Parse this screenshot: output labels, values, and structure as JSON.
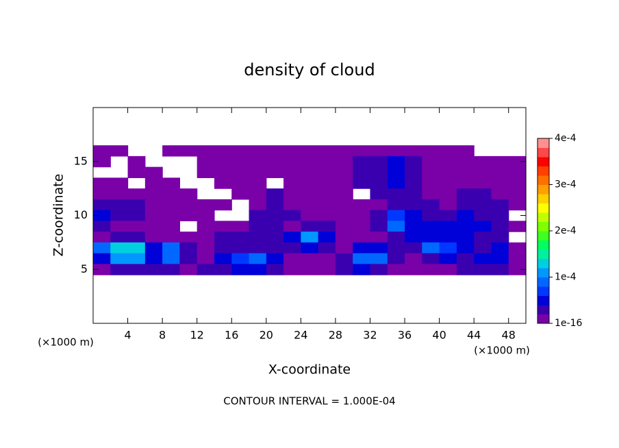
{
  "chart_data": {
    "type": "contour",
    "title": "density of cloud",
    "x_label": "X-coordinate",
    "y_label": "Z-coordinate",
    "x_unit": "(×1000 m)",
    "x_unit_right": "(×1000 m)",
    "footnote": "CONTOUR INTERVAL = 1.000E-04",
    "xlim": [
      0,
      50
    ],
    "ylim": [
      0,
      20
    ],
    "xticks": [
      4,
      8,
      12,
      16,
      20,
      24,
      28,
      32,
      36,
      40,
      44,
      48
    ],
    "yticks": [
      5,
      10,
      15
    ],
    "zlim": [
      1e-16,
      0.0004
    ],
    "zticks": [
      {
        "value": 1e-16,
        "label": "1e-16"
      },
      {
        "value": 0.0001,
        "label": "1e-4"
      },
      {
        "value": 0.0002,
        "label": "2e-4"
      },
      {
        "value": 0.0003,
        "label": "3e-4"
      },
      {
        "value": 0.0004,
        "label": "4e-4"
      }
    ],
    "colors": [
      "#7a00a8",
      "#3a00b0",
      "#0000d8",
      "#0038ff",
      "#0068ff",
      "#0098ff",
      "#00cfe0",
      "#00f0a0",
      "#00ff60",
      "#40ff20",
      "#80ff00",
      "#c0ff00",
      "#ffff00",
      "#ffd000",
      "#ffa000",
      "#ff7000",
      "#ff4000",
      "#ff0000",
      "#ff4848",
      "#ff9090"
    ],
    "x": [
      1,
      3,
      5,
      7,
      9,
      11,
      13,
      15,
      17,
      19,
      21,
      23,
      25,
      27,
      29,
      31,
      33,
      35,
      37,
      39,
      41,
      43,
      45,
      47,
      49
    ],
    "y": [
      16,
      15,
      14,
      13,
      12,
      11,
      10,
      9,
      8,
      7,
      6,
      5
    ],
    "values": [
      [
        1e-05,
        1e-05,
        null,
        null,
        1e-05,
        1e-05,
        1e-05,
        1e-05,
        1e-05,
        1e-05,
        1e-05,
        1e-05,
        1e-05,
        1e-05,
        1e-05,
        1e-05,
        1e-05,
        1e-05,
        1e-05,
        1e-05,
        1e-05,
        1e-05,
        null,
        null,
        null
      ],
      [
        1e-05,
        null,
        1e-05,
        null,
        null,
        null,
        1e-05,
        2e-05,
        2e-05,
        1e-05,
        1e-05,
        1e-05,
        1e-05,
        1e-05,
        2e-05,
        3e-05,
        4e-05,
        5e-05,
        3e-05,
        2e-05,
        1e-05,
        1e-05,
        1e-05,
        1e-05,
        1e-05
      ],
      [
        null,
        null,
        1e-05,
        1e-05,
        null,
        null,
        1e-05,
        1e-05,
        2e-05,
        2e-05,
        1e-05,
        1e-05,
        1e-05,
        1e-05,
        2e-05,
        3e-05,
        4e-05,
        5e-05,
        4e-05,
        2e-05,
        2e-05,
        2e-05,
        1e-05,
        1e-05,
        1e-05
      ],
      [
        1e-05,
        1e-05,
        null,
        1e-05,
        1e-05,
        null,
        null,
        1e-05,
        2e-05,
        2e-05,
        null,
        2e-05,
        1e-05,
        1e-05,
        2e-05,
        3e-05,
        4e-05,
        5e-05,
        4e-05,
        2e-05,
        2e-05,
        2e-05,
        2e-05,
        1e-05,
        1e-05
      ],
      [
        2e-05,
        2e-05,
        2e-05,
        1e-05,
        1e-05,
        1e-05,
        null,
        null,
        2e-05,
        2e-05,
        3e-05,
        2e-05,
        2e-05,
        2e-05,
        2e-05,
        null,
        3e-05,
        4e-05,
        3e-05,
        2e-05,
        2e-05,
        3e-05,
        3e-05,
        2e-05,
        2e-05
      ],
      [
        4e-05,
        3e-05,
        3e-05,
        2e-05,
        2e-05,
        1e-05,
        2e-05,
        1e-05,
        null,
        2e-05,
        3e-05,
        2e-05,
        2e-05,
        2e-05,
        1e-05,
        1e-05,
        2e-05,
        4e-05,
        3e-05,
        3e-05,
        2e-05,
        3e-05,
        4e-05,
        3e-05,
        2e-05
      ],
      [
        5e-05,
        4e-05,
        3e-05,
        1e-05,
        1e-05,
        2e-05,
        1e-05,
        null,
        null,
        3e-05,
        3e-05,
        3e-05,
        2e-05,
        2e-05,
        1e-05,
        1e-05,
        3e-05,
        7e-05,
        5e-05,
        4e-05,
        4e-05,
        5e-05,
        4e-05,
        3e-05,
        null
      ],
      [
        3e-05,
        2e-05,
        1e-05,
        1e-05,
        1e-05,
        null,
        1e-05,
        2e-05,
        2e-05,
        3e-05,
        3e-05,
        2e-05,
        3e-05,
        3e-05,
        1e-05,
        1e-05,
        3e-05,
        9e-05,
        6e-05,
        5e-05,
        5e-05,
        6e-05,
        5e-05,
        4e-05,
        2e-05
      ],
      [
        2e-05,
        4e-05,
        4e-05,
        2e-05,
        1e-05,
        1e-05,
        2e-05,
        3e-05,
        3e-05,
        4e-05,
        3e-05,
        5e-05,
        0.00011,
        5e-05,
        1e-05,
        2e-05,
        2e-05,
        4e-05,
        6e-05,
        6e-05,
        6e-05,
        5e-05,
        4e-05,
        3e-05,
        null
      ],
      [
        9e-05,
        0.00013,
        0.00013,
        6e-05,
        9e-05,
        3e-05,
        2e-05,
        3e-05,
        4e-05,
        4e-05,
        4e-05,
        4e-05,
        6e-05,
        4e-05,
        2e-05,
        5e-05,
        5e-05,
        3e-05,
        4e-05,
        9e-05,
        7e-05,
        5e-05,
        4e-05,
        5e-05,
        2e-05
      ],
      [
        6e-05,
        0.00011,
        0.00011,
        6e-05,
        0.0001,
        3e-05,
        2e-05,
        5e-05,
        7e-05,
        9e-05,
        6e-05,
        2e-05,
        2e-05,
        2e-05,
        3e-05,
        0.0001,
        9e-05,
        4e-05,
        2e-05,
        4e-05,
        6e-05,
        4e-05,
        5e-05,
        6e-05,
        1e-05
      ],
      [
        1e-05,
        3e-05,
        4e-05,
        3e-05,
        4e-05,
        2e-05,
        3e-05,
        4e-05,
        5e-05,
        5e-05,
        4e-05,
        1e-05,
        1e-05,
        1e-05,
        3e-05,
        5e-05,
        4e-05,
        2e-05,
        2e-05,
        2e-05,
        2e-05,
        3e-05,
        4e-05,
        3e-05,
        1e-05
      ]
    ]
  }
}
